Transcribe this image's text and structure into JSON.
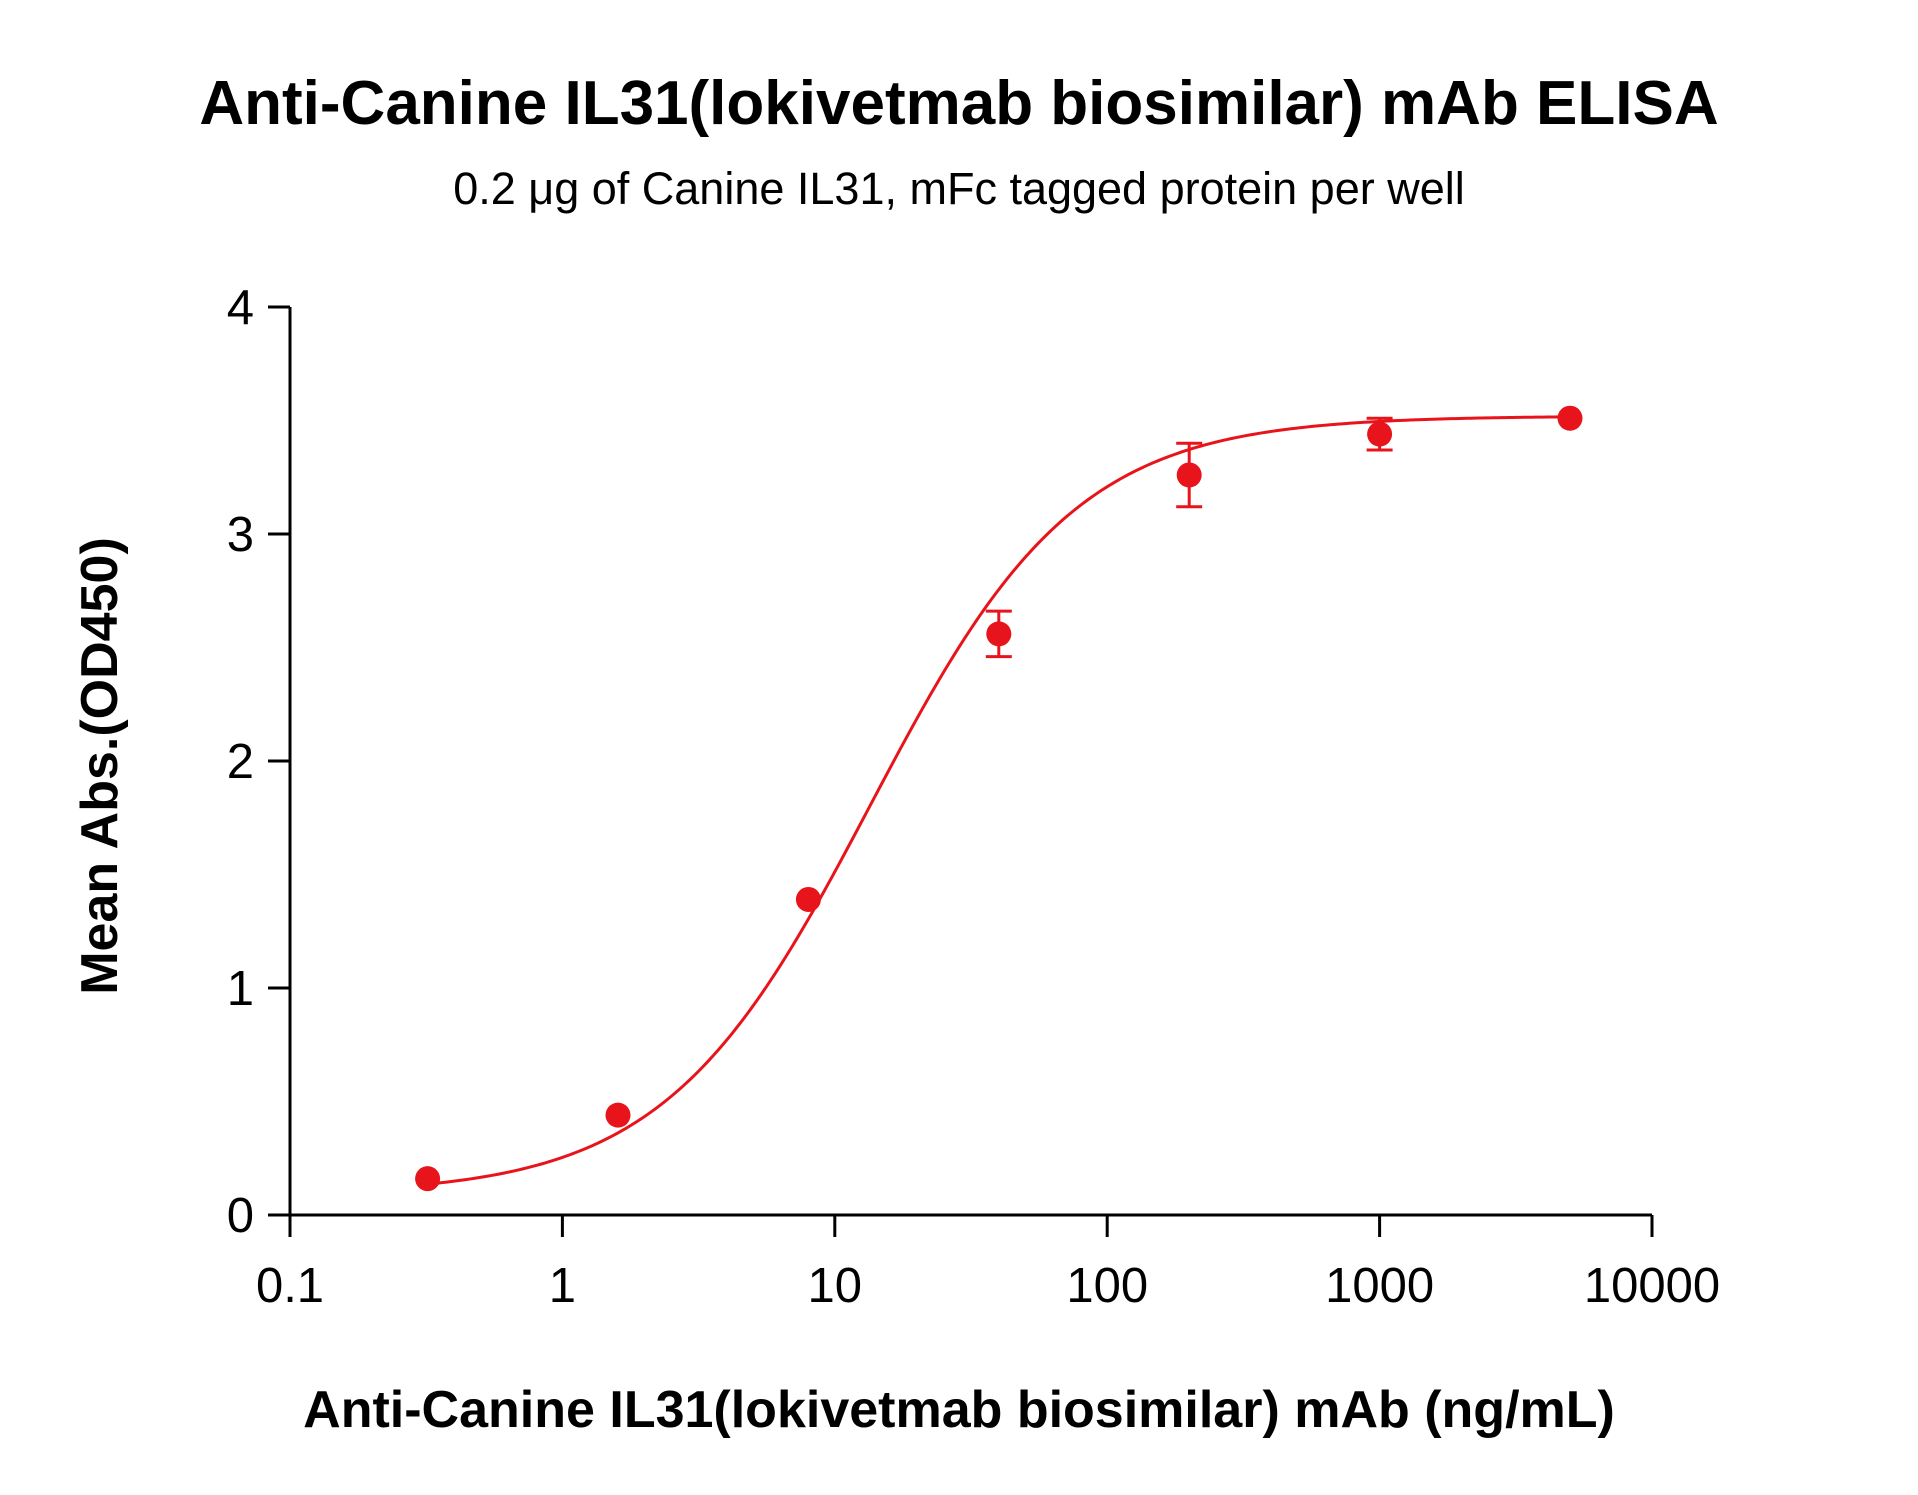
{
  "chart_data": {
    "type": "scatter",
    "title": "Anti-Canine IL31(lokivetmab biosimilar) mAb ELISA",
    "subtitle": "0.2 μg of Canine IL31, mFc tagged protein per well",
    "xlabel": "Anti-Canine IL31(lokivetmab biosimilar) mAb (ng/mL)",
    "ylabel": "Mean Abs.(OD450)",
    "x_scale": "log",
    "xlim": [
      0.1,
      10000
    ],
    "ylim": [
      0,
      4
    ],
    "x_ticks": [
      "0.1",
      "1",
      "10",
      "100",
      "1000",
      "10000"
    ],
    "y_ticks": [
      "0",
      "1",
      "2",
      "3",
      "4"
    ],
    "grid": false,
    "color": "#e8141b",
    "series": [
      {
        "x": [
          0.32,
          1.6,
          8,
          40,
          200,
          1000,
          5000
        ],
        "y": [
          0.16,
          0.44,
          1.39,
          2.56,
          3.26,
          3.44,
          3.51
        ],
        "error": [
          0.02,
          0.02,
          0.03,
          0.1,
          0.14,
          0.07,
          0.02
        ]
      }
    ],
    "fit_curve": {
      "type": "4PL",
      "bottom": 0.09,
      "top": 3.52,
      "ec50": 13.5,
      "hill": 1.15
    }
  }
}
